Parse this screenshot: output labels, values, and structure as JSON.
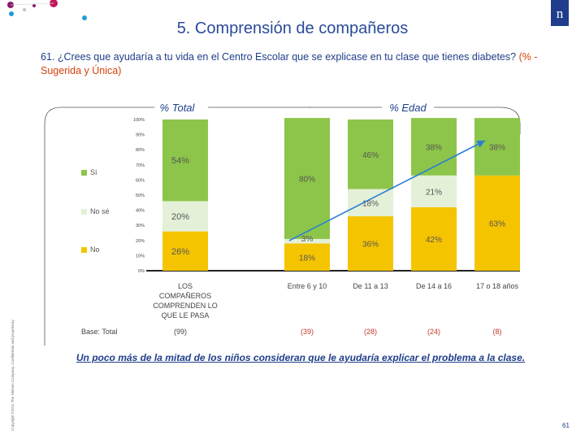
{
  "header": {
    "title": "5. Comprensión de compañeros",
    "logo_text": "n",
    "question_main": "61. ¿Crees que ayudaría a tu vida en el Centro Escolar que se explicase en tu clase que tienes diabetes?",
    "question_note": "(% - Sugerida y Única)"
  },
  "chart_data": {
    "type": "bar",
    "stacked": true,
    "total_heading": "% Total",
    "group_heading": "% Edad",
    "categories": [
      "LOS COMPAÑEROS COMPRENDEN LO QUE LE PASA",
      "Entre 6 y 10",
      "De 11 a 13",
      "De 14 a 16",
      "17 o 18 años"
    ],
    "base_label": "Base: Total",
    "bases": [
      "(99)",
      "(39)",
      "(28)",
      "(24)",
      "(8)"
    ],
    "series": [
      {
        "name": "No",
        "values": [
          26,
          18,
          36,
          42,
          63
        ],
        "labels": [
          "26%",
          "18%",
          "36%",
          "42%",
          "63%"
        ],
        "color": "#f5c400"
      },
      {
        "name": "No sé",
        "values": [
          20,
          3,
          18,
          21,
          0
        ],
        "labels": [
          "20%",
          "3%",
          "18%",
          "21%",
          ""
        ],
        "color": "#e4f0d8"
      },
      {
        "name": "Sí",
        "values": [
          54,
          80,
          46,
          38,
          38
        ],
        "labels": [
          "54%",
          "80%",
          "46%",
          "38%",
          "38%"
        ],
        "color": "#8dc54a"
      }
    ],
    "legend_order": [
      "Sí",
      "No sé",
      "No"
    ],
    "y_ticks": [
      "0%",
      "10%",
      "20%",
      "30%",
      "40%",
      "50%",
      "60%",
      "70%",
      "80%",
      "90%",
      "100%"
    ],
    "ylim": [
      0,
      100
    ],
    "trend_arrow": {
      "color": "#2a7fd4"
    }
  },
  "footer": {
    "conclusion": "Un poco más de la mitad de los niños consideran que le ayudaría explicar el problema a la clase.",
    "copyright": "Copyright ©2011 The Nielsen Company. Confidential and proprietary.",
    "page_number": "61"
  }
}
